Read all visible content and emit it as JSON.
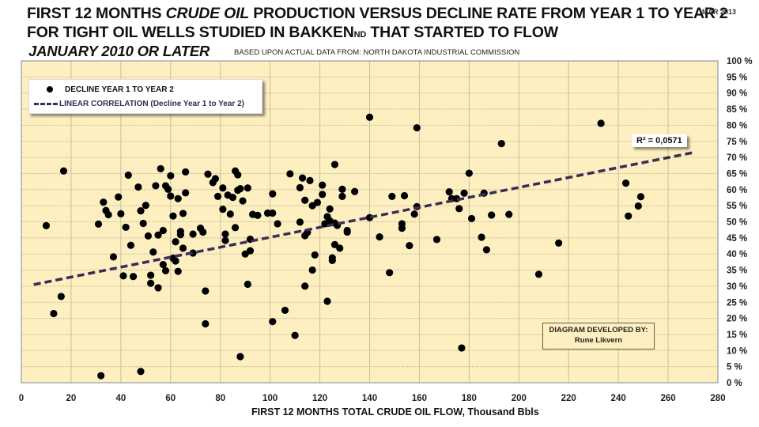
{
  "header": {
    "title_line1_a": "FIRST 12 MONTHS ",
    "title_line1_italic": "CRUDE OIL",
    "title_line1_b": " PRODUCTION VERSUS DECLINE RATE FROM YEAR 1 TO YEAR 2",
    "title_line2_a": "FOR TIGHT OIL WELLS STUDIED IN BAKKEN",
    "title_line2_sub": "ND",
    "title_line2_b": " THAT STARTED TO FLOW",
    "title_line3": "JANUARY 2010 OR LATER",
    "source": "BASED UPON ACTUAL DATA FROM: NORTH DAKOTA INDUSTRIAL COMMISSION",
    "date": "MAR 2013"
  },
  "legend": {
    "series_label": "DECLINE YEAR 1 TO YEAR 2",
    "trend_label": "LINEAR CORRELATION (Decline Year 1 to Year 2)"
  },
  "annotations": {
    "r_squared": "R² = 0,0571",
    "credit_line1": "DIAGRAM DEVELOPED BY:",
    "credit_line2": "Rune Likvern"
  },
  "colors": {
    "plot_bg": "#fdefc0",
    "grid": "#c9bf9a",
    "marker": "#000000",
    "trend": "#3b2d56"
  },
  "chart_data": {
    "type": "scatter",
    "title": "FIRST 12 MONTHS CRUDE OIL PRODUCTION VERSUS DECLINE RATE FROM YEAR 1 TO YEAR 2 FOR TIGHT OIL WELLS STUDIED IN BAKKEN ND THAT STARTED TO FLOW JANUARY 2010 OR LATER",
    "xlabel": "FIRST 12 MONTHS TOTAL CRUDE OIL FLOW,  Thousand Bbls",
    "ylabel": "",
    "xlim": [
      0,
      280
    ],
    "ylim": [
      0,
      100
    ],
    "x_ticks": [
      0,
      20,
      40,
      60,
      80,
      100,
      120,
      140,
      160,
      180,
      200,
      220,
      240,
      260,
      280
    ],
    "y_ticks": [
      0,
      5,
      10,
      15,
      20,
      25,
      30,
      35,
      40,
      45,
      50,
      55,
      60,
      65,
      70,
      75,
      80,
      85,
      90,
      95,
      100
    ],
    "y_tick_suffix": " %",
    "grid": true,
    "legend_position": "top-left",
    "series": [
      {
        "name": "DECLINE YEAR 1 TO YEAR 2",
        "points": [
          [
            10,
            48.8
          ],
          [
            13,
            21.5
          ],
          [
            16,
            26.8
          ],
          [
            17,
            65.8
          ],
          [
            31,
            49.3
          ],
          [
            32,
            2.2
          ],
          [
            33,
            56.1
          ],
          [
            34,
            53.5
          ],
          [
            35,
            52.2
          ],
          [
            37,
            39.1
          ],
          [
            39,
            57.7
          ],
          [
            40,
            52.5
          ],
          [
            41,
            33.2
          ],
          [
            42,
            48.3
          ],
          [
            43,
            64.5
          ],
          [
            44,
            42.7
          ],
          [
            45,
            33.0
          ],
          [
            47,
            60.8
          ],
          [
            48,
            3.5
          ],
          [
            48,
            53.4
          ],
          [
            49,
            49.5
          ],
          [
            50,
            55.1
          ],
          [
            51,
            45.6
          ],
          [
            52,
            33.4
          ],
          [
            52,
            30.9
          ],
          [
            53,
            40.6
          ],
          [
            54,
            61.2
          ],
          [
            55,
            45.9
          ],
          [
            55,
            29.5
          ],
          [
            56,
            66.5
          ],
          [
            57,
            47.3
          ],
          [
            57,
            36.7
          ],
          [
            58,
            34.8
          ],
          [
            58,
            61.2
          ],
          [
            59,
            60.1
          ],
          [
            60,
            58.0
          ],
          [
            60,
            64.3
          ],
          [
            61,
            38.7
          ],
          [
            61,
            51.8
          ],
          [
            62,
            37.8
          ],
          [
            62,
            43.8
          ],
          [
            63,
            57.2
          ],
          [
            63,
            34.6
          ],
          [
            64,
            46.0
          ],
          [
            64,
            47.0
          ],
          [
            65,
            52.6
          ],
          [
            65,
            41.8
          ],
          [
            66,
            59.0
          ],
          [
            66,
            65.5
          ],
          [
            69,
            40.3
          ],
          [
            69,
            46.2
          ],
          [
            72,
            48.0
          ],
          [
            73,
            46.8
          ],
          [
            74,
            28.5
          ],
          [
            74,
            18.3
          ],
          [
            75,
            64.8
          ],
          [
            77,
            62.2
          ],
          [
            78,
            63.4
          ],
          [
            79,
            57.9
          ],
          [
            81,
            60.5
          ],
          [
            81,
            53.9
          ],
          [
            82,
            46.2
          ],
          [
            82,
            44.2
          ],
          [
            83,
            58.3
          ],
          [
            84,
            52.4
          ],
          [
            85,
            57.6
          ],
          [
            86,
            65.8
          ],
          [
            86,
            48.2
          ],
          [
            87,
            59.8
          ],
          [
            87,
            64.6
          ],
          [
            88,
            60.3
          ],
          [
            88,
            8.1
          ],
          [
            89,
            56.5
          ],
          [
            90,
            40.0
          ],
          [
            91,
            60.5
          ],
          [
            91,
            30.6
          ],
          [
            92,
            41.0
          ],
          [
            92,
            44.6
          ],
          [
            93,
            52.3
          ],
          [
            95,
            52.0
          ],
          [
            99,
            52.7
          ],
          [
            101,
            52.7
          ],
          [
            101,
            19.0
          ],
          [
            101,
            58.7
          ],
          [
            103,
            49.4
          ],
          [
            106,
            22.5
          ],
          [
            108,
            64.9
          ],
          [
            110,
            14.7
          ],
          [
            112,
            60.6
          ],
          [
            112,
            49.9
          ],
          [
            113,
            63.6
          ],
          [
            114,
            56.7
          ],
          [
            114,
            45.7
          ],
          [
            114,
            30.0
          ],
          [
            115,
            46.7
          ],
          [
            116,
            62.8
          ],
          [
            117,
            55.0
          ],
          [
            117,
            35.0
          ],
          [
            118,
            39.7
          ],
          [
            119,
            56.0
          ],
          [
            121,
            58.5
          ],
          [
            121,
            61.4
          ],
          [
            122,
            49.4
          ],
          [
            123,
            51.6
          ],
          [
            123,
            25.3
          ],
          [
            124,
            50.3
          ],
          [
            124,
            54.0
          ],
          [
            125,
            38.8
          ],
          [
            125,
            38.0
          ],
          [
            126,
            67.8
          ],
          [
            126,
            42.9
          ],
          [
            126,
            49.6
          ],
          [
            127,
            48.9
          ],
          [
            128,
            41.8
          ],
          [
            129,
            60.1
          ],
          [
            129,
            57.9
          ],
          [
            131,
            47.3
          ],
          [
            131,
            46.8
          ],
          [
            134,
            59.4
          ],
          [
            140,
            51.3
          ],
          [
            140,
            82.5
          ],
          [
            144,
            45.3
          ],
          [
            148,
            34.2
          ],
          [
            149,
            57.9
          ],
          [
            153,
            48.0
          ],
          [
            153,
            49.4
          ],
          [
            154,
            58.1
          ],
          [
            156,
            42.6
          ],
          [
            158,
            52.4
          ],
          [
            159,
            79.2
          ],
          [
            159,
            54.7
          ],
          [
            167,
            44.5
          ],
          [
            172,
            59.3
          ],
          [
            173,
            57.2
          ],
          [
            175,
            57.2
          ],
          [
            176,
            54.1
          ],
          [
            177,
            10.8
          ],
          [
            178,
            58.9
          ],
          [
            180,
            65.1
          ],
          [
            181,
            51.0
          ],
          [
            185,
            45.2
          ],
          [
            186,
            58.9
          ],
          [
            187,
            41.3
          ],
          [
            189,
            52.1
          ],
          [
            193,
            74.3
          ],
          [
            196,
            52.3
          ],
          [
            208,
            33.7
          ],
          [
            216,
            43.4
          ],
          [
            233,
            80.6
          ],
          [
            243,
            62.0
          ],
          [
            244,
            51.8
          ],
          [
            248,
            54.9
          ],
          [
            249,
            57.8
          ]
        ]
      }
    ],
    "trendline": {
      "name": "LINEAR CORRELATION (Decline Year 1 to Year 2)",
      "type": "linear",
      "x_range": [
        5,
        270
      ],
      "y_at_start": 30.5,
      "y_at_end": 71.5,
      "r_squared": 0.0571
    }
  }
}
